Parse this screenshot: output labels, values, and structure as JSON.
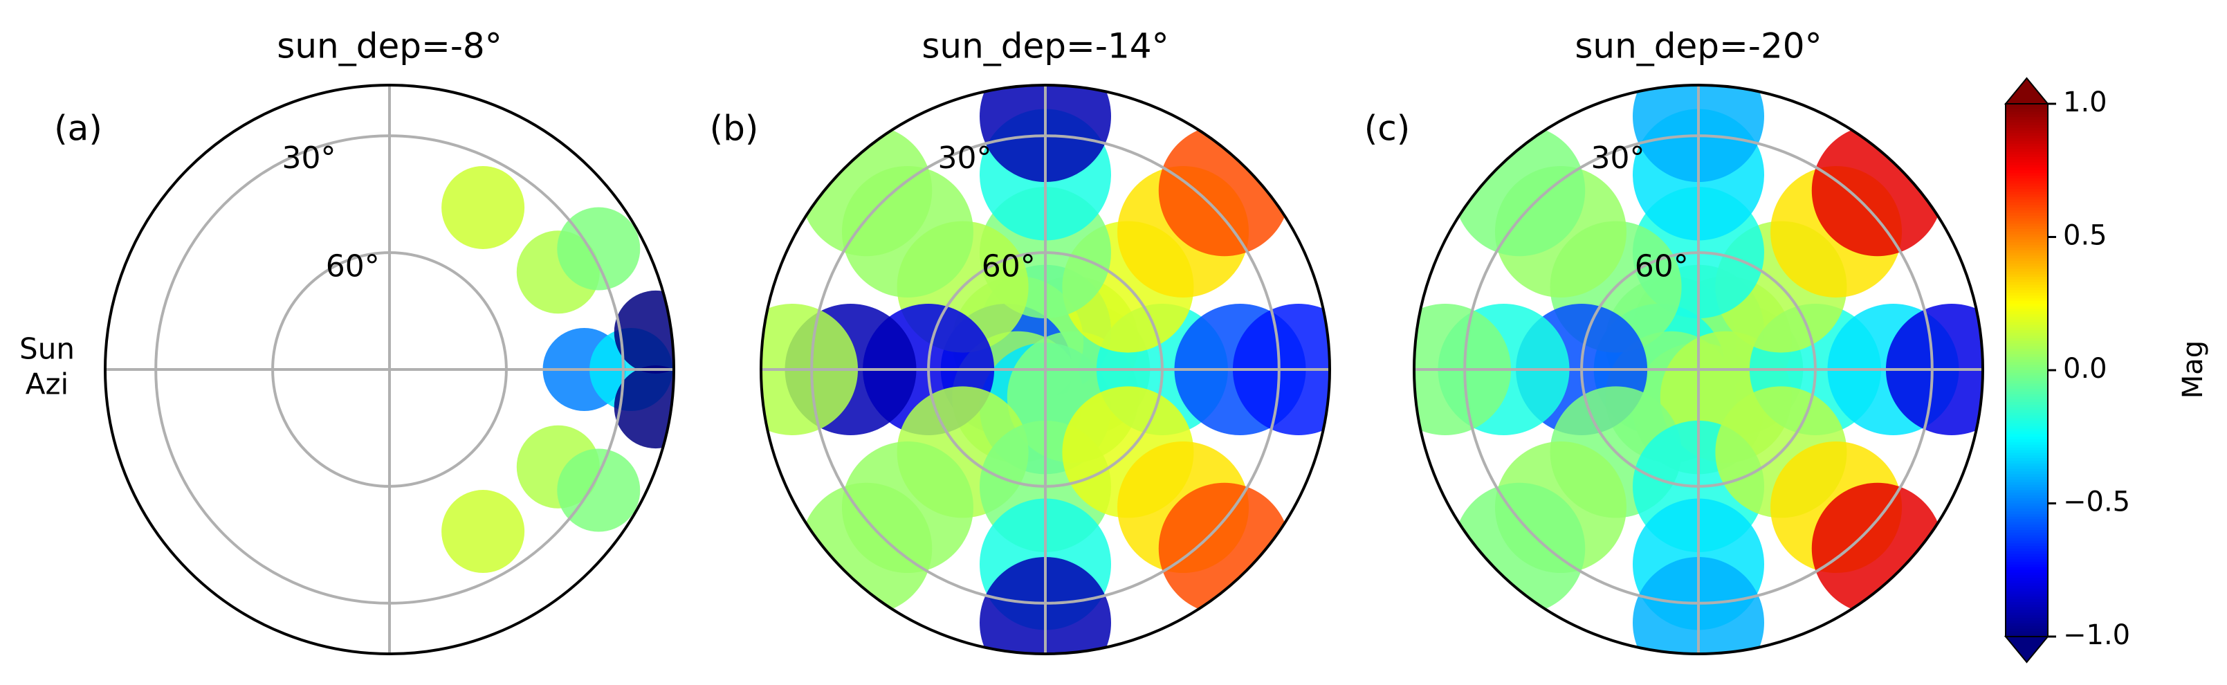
{
  "chart_data": [
    {
      "type": "polar",
      "title": "sun_dep=-8°",
      "panel_label": "(a)",
      "side_label": [
        "Sun",
        "Azi"
      ],
      "rlim": [
        90,
        17
      ],
      "rticks": [
        {
          "value": 30,
          "label": "30°"
        },
        {
          "value": 60,
          "label": "60°"
        }
      ],
      "theta": [
        0,
        30,
        60,
        300,
        330,
        0,
        30,
        330,
        8,
        352
      ],
      "r": [
        40,
        40,
        42,
        42,
        40,
        28,
        28,
        28,
        21,
        21
      ],
      "values": [
        -0.5,
        0.1,
        0.15,
        0.15,
        0.1,
        -0.3,
        0,
        0,
        -1,
        -1
      ]
    },
    {
      "type": "polar",
      "title": "sun_dep=-14°",
      "panel_label": "(b)",
      "rlim": [
        90,
        17
      ],
      "rticks": [
        {
          "value": 30,
          "label": "30°"
        },
        {
          "value": 60,
          "label": "60°"
        }
      ],
      "theta": [
        0,
        45,
        90,
        135,
        180,
        225,
        270,
        315,
        0,
        45,
        90,
        135,
        180,
        225,
        270,
        315,
        0,
        45,
        90,
        135,
        180,
        225,
        270,
        315,
        0,
        45,
        90,
        135,
        180,
        225,
        270,
        315
      ],
      "r": [
        80,
        80,
        80,
        80,
        80,
        80,
        80,
        80,
        60,
        60,
        60,
        60,
        60,
        60,
        60,
        60,
        40,
        40,
        40,
        40,
        40,
        40,
        40,
        40,
        25,
        25,
        25,
        25,
        25,
        25,
        25,
        25
      ],
      "values": [
        0,
        0.05,
        -0.3,
        0.05,
        -0.6,
        0.05,
        -0.3,
        0,
        -0.2,
        0.2,
        0,
        0.1,
        -0.8,
        0.1,
        0,
        0.2,
        -0.6,
        0.3,
        -0.2,
        0.05,
        -0.9,
        0.05,
        -0.2,
        0.3,
        -0.7,
        0.6,
        -0.9,
        0.05,
        0.1,
        0.05,
        -0.9,
        0.6
      ]
    },
    {
      "type": "polar",
      "title": "sun_dep=-20°",
      "panel_label": "(c)",
      "rlim": [
        90,
        17
      ],
      "rticks": [
        {
          "value": 30,
          "label": "30°"
        },
        {
          "value": 60,
          "label": "60°"
        }
      ],
      "theta": [
        0,
        45,
        90,
        135,
        180,
        225,
        270,
        315,
        0,
        45,
        90,
        135,
        180,
        225,
        270,
        315,
        0,
        45,
        90,
        135,
        180,
        225,
        270,
        315,
        0,
        45,
        90,
        135,
        180,
        225,
        270,
        315
      ],
      "r": [
        80,
        80,
        80,
        80,
        80,
        80,
        80,
        80,
        60,
        60,
        60,
        60,
        60,
        60,
        60,
        60,
        40,
        40,
        40,
        40,
        40,
        40,
        40,
        40,
        25,
        25,
        25,
        25,
        25,
        25,
        25,
        25
      ],
      "values": [
        0,
        0.1,
        0,
        0,
        -0.2,
        0,
        0,
        0.1,
        -0.2,
        0.1,
        -0.2,
        0,
        -0.6,
        0,
        -0.2,
        0.1,
        -0.3,
        0.3,
        -0.3,
        0.05,
        -0.2,
        0.05,
        -0.3,
        0.3,
        -0.8,
        0.8,
        -0.4,
        0,
        0,
        0,
        -0.4,
        0.8
      ]
    }
  ],
  "colorbar": {
    "label": "Mag",
    "colormap": "jet",
    "lim": [
      -1,
      1
    ],
    "ticks": [
      {
        "value": 1,
        "label": "1.0"
      },
      {
        "value": 0.5,
        "label": "0.5"
      },
      {
        "value": 0,
        "label": "0.0"
      },
      {
        "value": -0.5,
        "label": "−0.5"
      },
      {
        "value": -1,
        "label": "−1.0"
      }
    ]
  }
}
